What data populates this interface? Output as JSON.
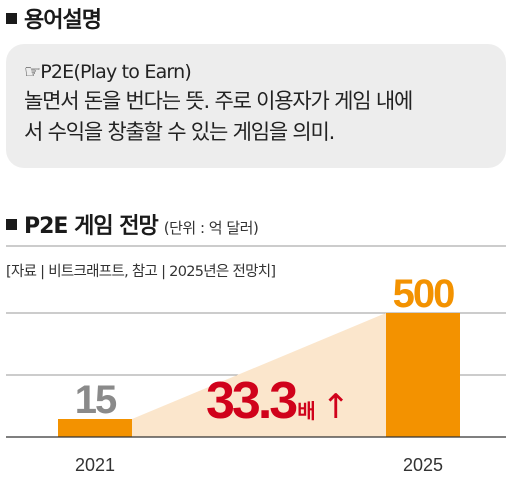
{
  "glossary": {
    "title": "용어설명",
    "term": "☞P2E(Play to Earn)",
    "definition_lines": [
      "놀면서 돈을 번다는 뜻. 주로 이용자가 게임 내에",
      "서 수익을 창출할 수 있는 게임을 의미."
    ]
  },
  "chart": {
    "title": "P2E 게임 전망",
    "unit": "(단위 : 억 달러)",
    "source": "[자료 | 비트크래프트, 참고 | 2025년은 전망치]",
    "growth_label": {
      "number": "33.3",
      "suffix": "배",
      "arrow": "↑"
    }
  },
  "colors": {
    "bar": "#f39200",
    "growth_fill": "#fbe6cc",
    "growth_text": "#d0021b",
    "label_2021": "#8a8a8a",
    "label_2025": "#f39200",
    "grid": "#9a9a9a"
  },
  "chart_data": {
    "type": "bar",
    "categories": [
      "2021",
      "2025"
    ],
    "values": [
      15,
      500
    ],
    "title": "P2E 게임 전망",
    "ylabel": "",
    "grid": true,
    "annotations": [
      "33.3배 ↑"
    ]
  }
}
